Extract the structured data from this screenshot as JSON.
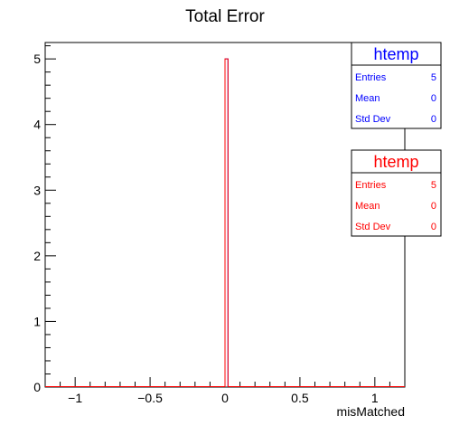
{
  "chart_data": {
    "type": "bar",
    "title": "Total Error",
    "xlabel": "misMatched",
    "ylabel": "",
    "xlim": [
      -1.2,
      1.2
    ],
    "ylim": [
      0,
      5.25
    ],
    "x_ticks": [
      -1,
      -0.5,
      0,
      0.5,
      1
    ],
    "x_tick_labels": [
      "−1",
      "−0.5",
      "0",
      "0.5",
      "1"
    ],
    "y_ticks": [
      0,
      1,
      2,
      3,
      4,
      5
    ],
    "y_tick_labels": [
      "0",
      "1",
      "2",
      "3",
      "4",
      "5"
    ],
    "grid": false,
    "series": [
      {
        "name": "htemp",
        "color": "#0000ff",
        "bins": [
          {
            "x0": 0.0,
            "x1": 0.02,
            "value": 5
          }
        ]
      },
      {
        "name": "htemp",
        "color": "#ff0000",
        "bins": [
          {
            "x0": 0.0,
            "x1": 0.02,
            "value": 5
          }
        ]
      }
    ],
    "stat_boxes": [
      {
        "title": "htemp",
        "color": "#0000ff",
        "rows": [
          {
            "label": "Entries",
            "value": "5"
          },
          {
            "label": "Mean",
            "value": "0"
          },
          {
            "label": "Std Dev",
            "value": "0"
          }
        ]
      },
      {
        "title": "htemp",
        "color": "#ff0000",
        "rows": [
          {
            "label": "Entries",
            "value": "5"
          },
          {
            "label": "Mean",
            "value": "0"
          },
          {
            "label": "Std Dev",
            "value": "0"
          }
        ]
      }
    ]
  }
}
